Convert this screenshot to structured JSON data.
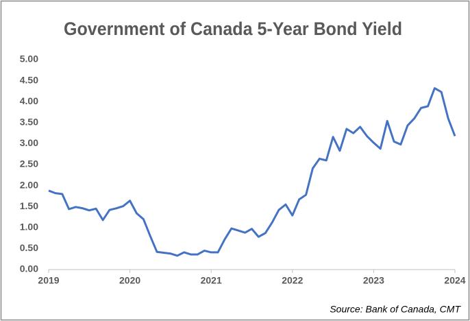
{
  "chart_data": {
    "type": "line",
    "title": "Government of Canada 5-Year Bond Yield",
    "annotation": "Source: Bank of Canada, CMT",
    "x": [
      2019,
      2019.083,
      2019.167,
      2019.25,
      2019.333,
      2019.417,
      2019.5,
      2019.583,
      2019.667,
      2019.75,
      2019.833,
      2019.917,
      2020,
      2020.083,
      2020.167,
      2020.25,
      2020.333,
      2020.417,
      2020.5,
      2020.583,
      2020.667,
      2020.75,
      2020.833,
      2020.917,
      2021,
      2021.083,
      2021.167,
      2021.25,
      2021.333,
      2021.417,
      2021.5,
      2021.583,
      2021.667,
      2021.75,
      2021.833,
      2021.917,
      2022,
      2022.083,
      2022.167,
      2022.25,
      2022.333,
      2022.417,
      2022.5,
      2022.583,
      2022.667,
      2022.75,
      2022.833,
      2022.917,
      2023,
      2023.083,
      2023.167,
      2023.25,
      2023.333,
      2023.417,
      2023.5,
      2023.583,
      2023.667,
      2023.75,
      2023.833,
      2023.917,
      2024
    ],
    "series": [
      {
        "name": "5-Year Bond Yield",
        "color": "#4472c4",
        "values": [
          1.88,
          1.82,
          1.8,
          1.44,
          1.49,
          1.46,
          1.41,
          1.45,
          1.18,
          1.42,
          1.46,
          1.51,
          1.64,
          1.34,
          1.2,
          0.8,
          0.42,
          0.4,
          0.38,
          0.33,
          0.41,
          0.36,
          0.36,
          0.45,
          0.41,
          0.41,
          0.72,
          0.98,
          0.93,
          0.88,
          0.97,
          0.78,
          0.87,
          1.12,
          1.42,
          1.55,
          1.29,
          1.67,
          1.78,
          2.41,
          2.64,
          2.6,
          3.16,
          2.83,
          3.35,
          3.25,
          3.4,
          3.18,
          3.02,
          2.88,
          3.54,
          3.05,
          2.98,
          3.43,
          3.6,
          3.85,
          3.89,
          4.32,
          4.23,
          3.6,
          3.18
        ]
      }
    ],
    "xlim": [
      2019,
      2024
    ],
    "xticks": [
      2019,
      2020,
      2021,
      2022,
      2023,
      2024
    ],
    "ylim": [
      0,
      5
    ],
    "yticks": [
      {
        "value": 0,
        "label": "0.00"
      },
      {
        "value": 0.5,
        "label": "0.50"
      },
      {
        "value": 1,
        "label": "1.00"
      },
      {
        "value": 1.5,
        "label": "1.50"
      },
      {
        "value": 2,
        "label": "2.00"
      },
      {
        "value": 2.5,
        "label": "2.50"
      },
      {
        "value": 3,
        "label": "3.00"
      },
      {
        "value": 3.5,
        "label": "3.50"
      },
      {
        "value": 4,
        "label": "4.00"
      },
      {
        "value": 4.5,
        "label": "4.50"
      },
      {
        "value": 5,
        "label": "5.00"
      }
    ],
    "grid": false
  }
}
